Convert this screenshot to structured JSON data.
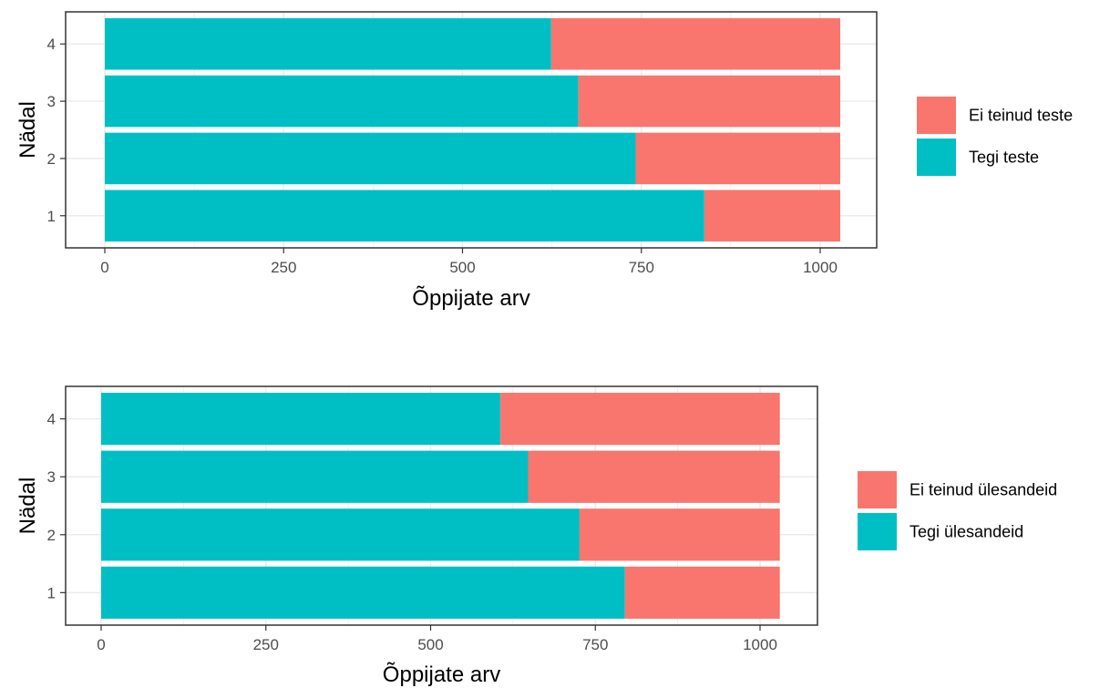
{
  "colors": {
    "did": "#00BFC4",
    "did_not": "#F8766D",
    "grid": "#ebebeb",
    "panel_border": "#333333",
    "tick_text": "#4d4d4d"
  },
  "chart_data": [
    {
      "type": "bar",
      "orientation": "horizontal",
      "stacked": true,
      "categories": [
        "1",
        "2",
        "3",
        "4"
      ],
      "xlabel": "Õppijate arv",
      "ylabel": "Nädal",
      "xlim": [
        0,
        1030
      ],
      "xticks": [
        0,
        250,
        500,
        750,
        1000
      ],
      "grid": true,
      "legend_position": "right",
      "series": [
        {
          "name": "Tegi teste",
          "color_key": "did",
          "values": [
            838,
            742,
            662,
            624
          ]
        },
        {
          "name": "Ei teinud teste",
          "color_key": "did_not",
          "values": [
            190,
            286,
            366,
            404
          ]
        }
      ],
      "legend_order": [
        "Ei teinud teste",
        "Tegi teste"
      ]
    },
    {
      "type": "bar",
      "orientation": "horizontal",
      "stacked": true,
      "categories": [
        "1",
        "2",
        "3",
        "4"
      ],
      "xlabel": "Õppijate arv",
      "ylabel": "Nädal",
      "xlim": [
        0,
        1030
      ],
      "xticks": [
        0,
        250,
        500,
        750,
        1000
      ],
      "grid": true,
      "legend_position": "right",
      "series": [
        {
          "name": "Tegi ülesandeid",
          "color_key": "did",
          "values": [
            795,
            726,
            648,
            606
          ]
        },
        {
          "name": "Ei teinud ülesandeid",
          "color_key": "did_not",
          "values": [
            235,
            304,
            382,
            424
          ]
        }
      ],
      "legend_order": [
        "Ei teinud ülesandeid",
        "Tegi ülesandeid"
      ]
    }
  ]
}
